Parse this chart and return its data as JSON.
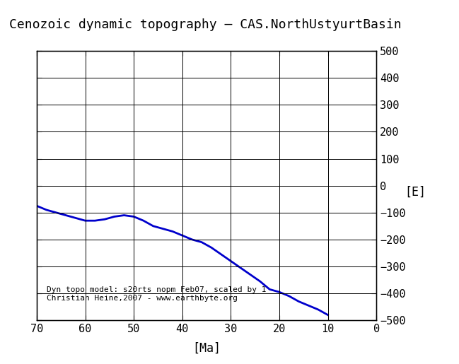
{
  "title": "Cenozoic dynamic topography – CAS.NorthUstyurtBasin",
  "xlabel": "[Ma]",
  "ylabel": "[E]",
  "xlim": [
    70,
    0
  ],
  "ylim": [
    -500,
    500
  ],
  "xticks": [
    70,
    60,
    50,
    40,
    30,
    20,
    10,
    0
  ],
  "yticks": [
    -500,
    -400,
    -300,
    -200,
    -100,
    0,
    100,
    200,
    300,
    400,
    500
  ],
  "line_color": "#0000cc",
  "line_width": 2.0,
  "annotation": "Dyn topo model: s20rts_nopm_Feb07, scaled by 1\nChristian Heine,2007 - www.earthbyte.org",
  "x_data": [
    70,
    68,
    66,
    64,
    62,
    60,
    58,
    56,
    54,
    52,
    50,
    48,
    46,
    44,
    42,
    40,
    38,
    36,
    34,
    32,
    30,
    28,
    26,
    24,
    22,
    20,
    18,
    16,
    14,
    12,
    10
  ],
  "y_data": [
    -75,
    -90,
    -100,
    -110,
    -120,
    -130,
    -130,
    -125,
    -115,
    -110,
    -115,
    -130,
    -150,
    -160,
    -170,
    -185,
    -200,
    -210,
    -230,
    -255,
    -280,
    -305,
    -330,
    -355,
    -385,
    -395,
    -410,
    -430,
    -445,
    -460,
    -480
  ]
}
